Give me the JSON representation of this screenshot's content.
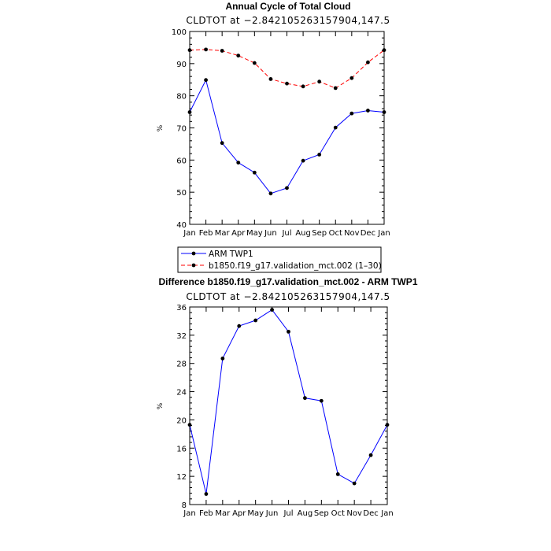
{
  "chart_data": [
    {
      "type": "line",
      "title": "Annual Cycle of Total Cloud",
      "subtitle": "CLDTOT at −2.842105263157904,147.5",
      "ylabel": "%",
      "ylim": [
        40,
        100
      ],
      "yticks": [
        40,
        50,
        60,
        70,
        80,
        90,
        100
      ],
      "categories": [
        "Jan",
        "Feb",
        "Mar",
        "Apr",
        "May",
        "Jun",
        "Jul",
        "Aug",
        "Sep",
        "Oct",
        "Nov",
        "Dec",
        "Jan"
      ],
      "legend_position": "bottom",
      "series": [
        {
          "name": "ARM TWP1",
          "color": "#0000ff",
          "dash": "solid",
          "values": [
            74.9,
            84.9,
            65.3,
            59.2,
            56.1,
            49.6,
            51.3,
            59.8,
            61.7,
            70.1,
            74.5,
            75.4,
            74.9
          ]
        },
        {
          "name": "b1850.f19_g17.validation_mct.002 (1–30)",
          "color": "#ff0000",
          "dash": "dashed",
          "values": [
            94.2,
            94.4,
            94.0,
            92.5,
            90.2,
            85.2,
            83.8,
            82.9,
            84.4,
            82.4,
            85.5,
            90.4,
            94.2
          ]
        }
      ]
    },
    {
      "type": "line",
      "title": "Difference b1850.f19_g17.validation_mct.002 - ARM TWP1",
      "subtitle": "CLDTOT at −2.842105263157904,147.5",
      "ylabel": "%",
      "ylim": [
        8,
        36
      ],
      "yticks": [
        8,
        12,
        16,
        20,
        24,
        28,
        32,
        36
      ],
      "categories": [
        "Jan",
        "Feb",
        "Mar",
        "Apr",
        "May",
        "Jun",
        "Jul",
        "Aug",
        "Sep",
        "Oct",
        "Nov",
        "Dec",
        "Jan"
      ],
      "series": [
        {
          "color": "#0000ff",
          "dash": "solid",
          "values": [
            19.3,
            9.5,
            28.7,
            33.3,
            34.1,
            35.6,
            32.5,
            23.1,
            22.7,
            12.3,
            11.0,
            15.0,
            19.3
          ]
        }
      ]
    }
  ]
}
